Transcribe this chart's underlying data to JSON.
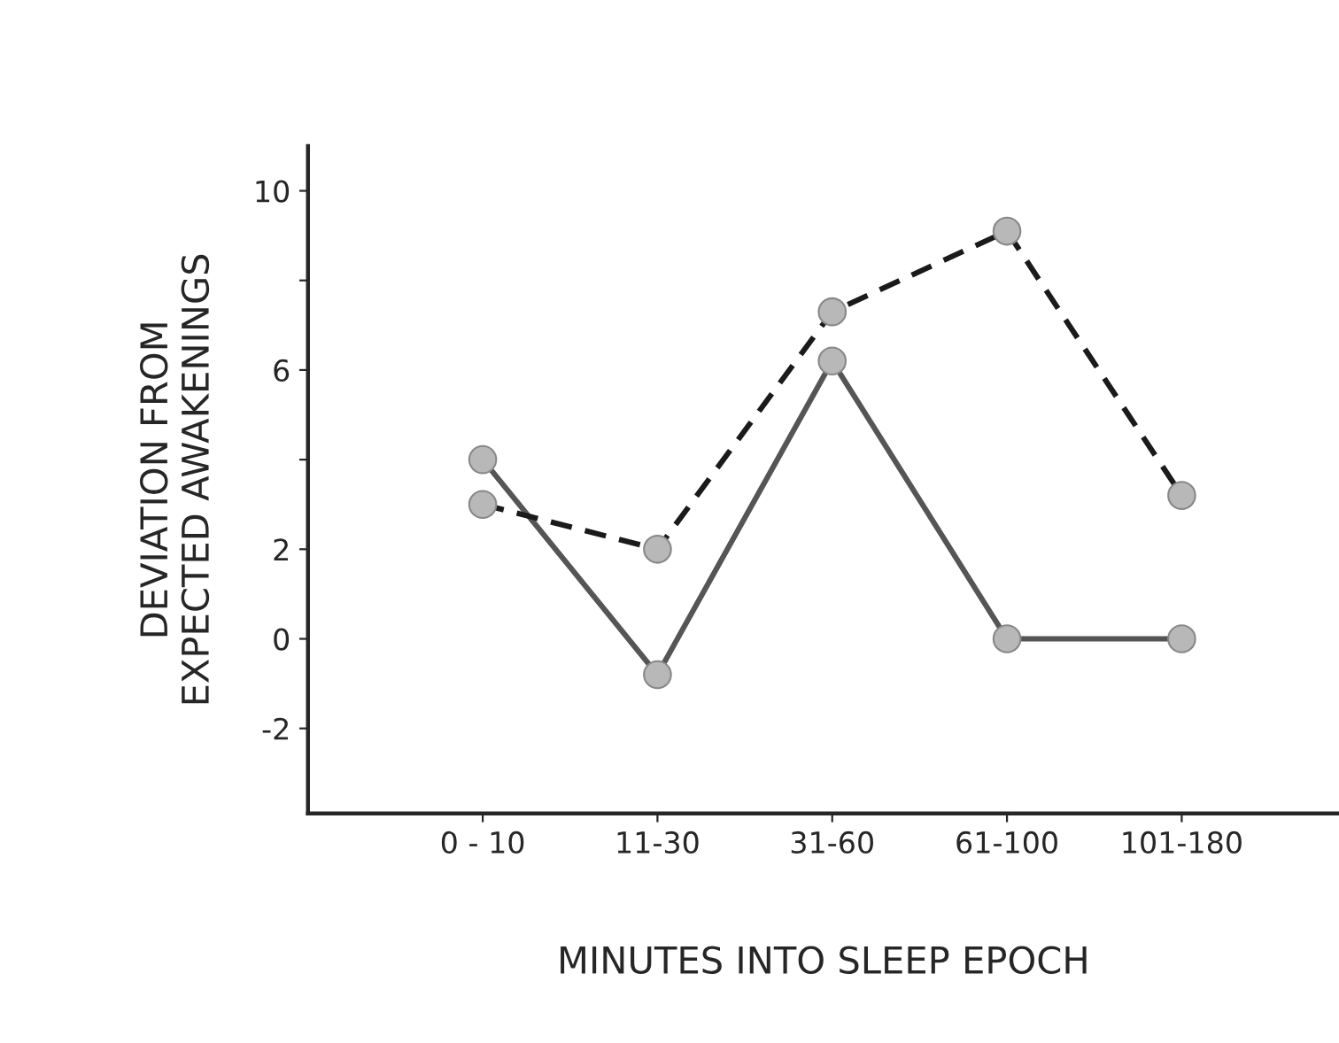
{
  "chart_data": {
    "type": "line",
    "xlabel": "MINUTES INTO SLEEP EPOCH",
    "ylabel": "DEVIATION FROM\nEXPECTED AWAKENINGS",
    "categories": [
      "0 - 10",
      "11-30",
      "31-60",
      "61-100",
      "101-180"
    ],
    "series": [
      {
        "color": "#555555",
        "values": [
          4,
          -0.8,
          6.2,
          0,
          0
        ],
        "line_style": "solid"
      },
      {
        "color": "#1a1a1a",
        "values": [
          3,
          2,
          7.3,
          9.1,
          3.2
        ],
        "line_style": "dashed"
      }
    ],
    "ylim": [
      -3.9,
      11
    ],
    "yticks": [
      -2,
      0,
      2,
      6,
      {
        "value": 4,
        "label": null
      },
      {
        "value": 8,
        "label": null
      },
      10
    ],
    "marker": "circle",
    "grid": false,
    "legend": false
  }
}
